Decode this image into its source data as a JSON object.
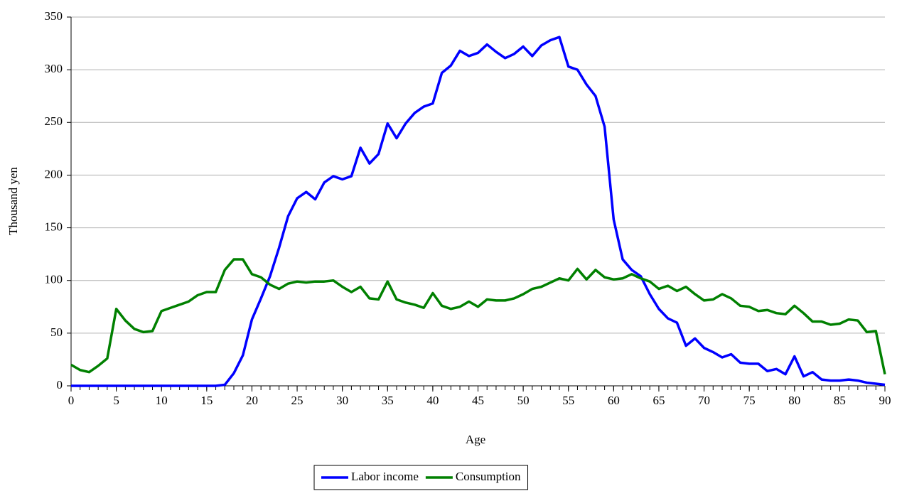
{
  "chart_data": {
    "type": "line",
    "x_label": "Age",
    "y_label": "Thousand yen",
    "x": [
      0,
      1,
      2,
      3,
      4,
      5,
      6,
      7,
      8,
      9,
      10,
      11,
      12,
      13,
      14,
      15,
      16,
      17,
      18,
      19,
      20,
      21,
      22,
      23,
      24,
      25,
      26,
      27,
      28,
      29,
      30,
      31,
      32,
      33,
      34,
      35,
      36,
      37,
      38,
      39,
      40,
      41,
      42,
      43,
      44,
      45,
      46,
      47,
      48,
      49,
      50,
      51,
      52,
      53,
      54,
      55,
      56,
      57,
      58,
      59,
      60,
      61,
      62,
      63,
      64,
      65,
      66,
      67,
      68,
      69,
      70,
      71,
      72,
      73,
      74,
      75,
      76,
      77,
      78,
      79,
      80,
      81,
      82,
      83,
      84,
      85,
      86,
      87,
      88,
      89,
      90
    ],
    "series": [
      {
        "name": "Labor income",
        "color": "#0000ff",
        "values": [
          0,
          0,
          0,
          0,
          0,
          0,
          0,
          0,
          0,
          0,
          0,
          0,
          0,
          0,
          0,
          0,
          0,
          1,
          12,
          29,
          63,
          83,
          104,
          131,
          161,
          178,
          184,
          177,
          193,
          199,
          196,
          199,
          226,
          211,
          220,
          249,
          235,
          249,
          259,
          265,
          268,
          297,
          304,
          318,
          313,
          316,
          324,
          317,
          311,
          315,
          322,
          313,
          323,
          328,
          331,
          303,
          300,
          286,
          275,
          246,
          158,
          120,
          110,
          104,
          87,
          73,
          64,
          60,
          38,
          45,
          36,
          32,
          27,
          30,
          22,
          21,
          21,
          14,
          16,
          11,
          28,
          9,
          13,
          6,
          5,
          5,
          6,
          5,
          3,
          2,
          1
        ]
      },
      {
        "name": "Consumption",
        "color": "#008000",
        "values": [
          20,
          15,
          13,
          19,
          26,
          73,
          62,
          54,
          51,
          52,
          71,
          74,
          77,
          80,
          86,
          89,
          89,
          110,
          120,
          120,
          106,
          103,
          96,
          92,
          97,
          99,
          98,
          99,
          99,
          100,
          94,
          89,
          94,
          83,
          82,
          99,
          82,
          79,
          77,
          74,
          88,
          76,
          73,
          75,
          80,
          75,
          82,
          81,
          81,
          83,
          87,
          92,
          94,
          98,
          102,
          100,
          111,
          101,
          110,
          103,
          101,
          102,
          106,
          102,
          99,
          92,
          95,
          90,
          94,
          87,
          81,
          82,
          87,
          83,
          76,
          75,
          71,
          72,
          69,
          68,
          76,
          69,
          61,
          61,
          58,
          59,
          63,
          62,
          51,
          52,
          11
        ]
      }
    ],
    "xlim": [
      0,
      90
    ],
    "xticks": [
      0,
      5,
      10,
      15,
      20,
      25,
      30,
      35,
      40,
      45,
      50,
      55,
      60,
      65,
      70,
      75,
      80,
      85,
      90
    ],
    "ylim": [
      0,
      350
    ],
    "yticks": [
      0,
      50,
      100,
      150,
      200,
      250,
      300,
      350
    ],
    "grid": true,
    "legend": "bottom"
  }
}
